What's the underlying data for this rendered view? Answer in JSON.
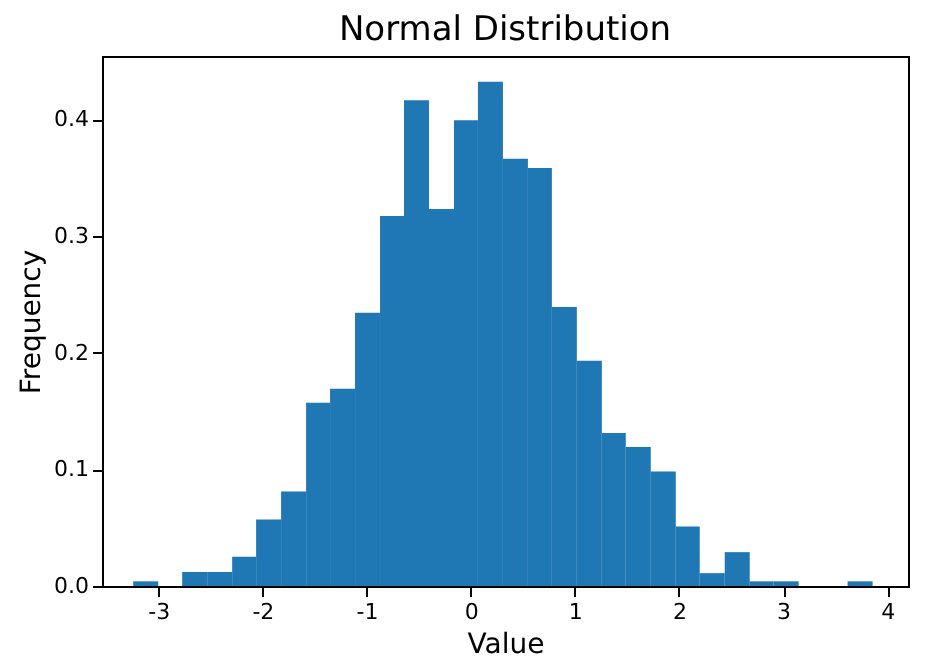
{
  "chart_data": {
    "type": "histogram",
    "title": "Normal Distribution",
    "xlabel": "Value",
    "ylabel": "Frequency",
    "bins": [
      -3.24,
      -3.0,
      -2.77,
      -2.53,
      -2.29,
      -2.06,
      -1.82,
      -1.58,
      -1.35,
      -1.11,
      -0.87,
      -0.64,
      -0.4,
      -0.16,
      0.07,
      0.31,
      0.55,
      0.78,
      1.02,
      1.26,
      1.49,
      1.73,
      1.97,
      2.2,
      2.44,
      2.68,
      2.91,
      3.15,
      3.62,
      3.86
    ],
    "values": [
      0.004,
      0,
      0.012,
      0.012,
      0.025,
      0.057,
      0.081,
      0.157,
      0.169,
      0.234,
      0.317,
      0.416,
      0.323,
      0.399,
      0.432,
      0.366,
      0.358,
      0.239,
      0.193,
      0.131,
      0.119,
      0.098,
      0.051,
      0.011,
      0.029,
      0.004,
      0.004,
      0,
      0.004
    ],
    "color": "#1f77b4",
    "xlim": [
      -3.54,
      4.2
    ],
    "xticks": [
      -3,
      -2,
      -1,
      0,
      1,
      2,
      3,
      4
    ],
    "ylim": [
      0,
      0.454
    ],
    "yticks": [
      {
        "value": 0,
        "label": "0.0"
      },
      {
        "value": 0.1,
        "label": "0.1"
      },
      {
        "value": 0.2,
        "label": "0.2"
      },
      {
        "value": 0.3,
        "label": "0.3"
      },
      {
        "value": 0.4,
        "label": "0.4"
      }
    ],
    "grid": false
  }
}
